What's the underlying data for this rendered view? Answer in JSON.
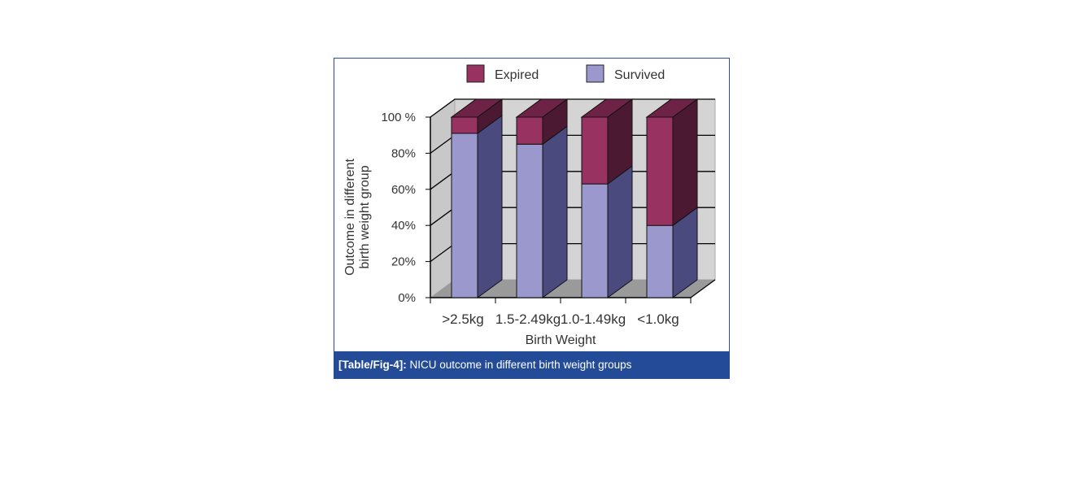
{
  "caption": {
    "label": "[Table/Fig-4]:",
    "text": " NICU outcome in different birth weight groups"
  },
  "chart_data": {
    "type": "bar",
    "stacked": true,
    "style": "3d",
    "categories": [
      ">2.5kg",
      "1.5-2.49kg",
      "1.0-1.49kg",
      "<1.0kg"
    ],
    "series": [
      {
        "name": "Survived",
        "values": [
          91,
          85,
          63,
          40
        ],
        "color": "#9a98cc",
        "side": "#4a4a7e"
      },
      {
        "name": "Expired",
        "values": [
          9,
          15,
          37,
          60
        ],
        "color": "#983260",
        "side": "#4b1a32"
      }
    ],
    "legend_order": [
      "Expired",
      "Survived"
    ],
    "legend": "top",
    "xlabel": "Birth Weight",
    "ylabel": "Outcome in different birth weight group",
    "ylabel_lines": [
      "Outcome in different",
      "birth weight group"
    ],
    "yticks": [
      "0%",
      "20%",
      "40%",
      "60%",
      "80%",
      "100 %"
    ],
    "ylim": [
      0,
      100
    ],
    "grid": true
  }
}
